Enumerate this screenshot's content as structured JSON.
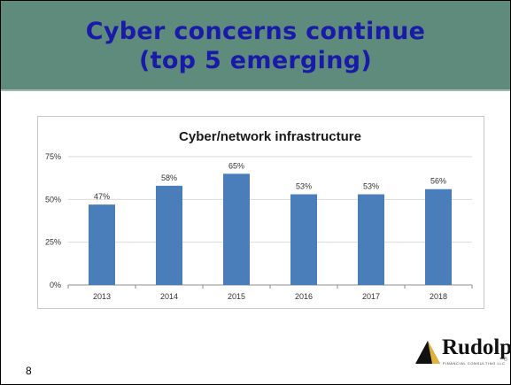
{
  "slide": {
    "title_line1": "Cyber concerns continue",
    "title_line2": "(top 5 emerging)",
    "number": "8"
  },
  "colors": {
    "header_bg": "#5f8b7d",
    "title_text": "#1a1aa8",
    "bar": "#4a7ebb"
  },
  "logo": {
    "wordmark": "Rudolph",
    "tagline": "FINANCIAL CONSULTING LLC",
    "page": "8",
    "icon": "mountain-triangle-icon"
  },
  "chart_data": {
    "type": "bar",
    "title": "Cyber/network infrastructure",
    "categories": [
      "2013",
      "2014",
      "2015",
      "2016",
      "2017",
      "2018"
    ],
    "values": [
      47,
      58,
      65,
      53,
      53,
      56
    ],
    "value_labels": [
      "47%",
      "58%",
      "65%",
      "53%",
      "53%",
      "56%"
    ],
    "ylim": [
      0,
      75
    ],
    "yticks": [
      0,
      25,
      50,
      75
    ],
    "ytick_labels": [
      "0%",
      "25%",
      "50%",
      "75%"
    ],
    "grid": true,
    "legend": "none"
  }
}
